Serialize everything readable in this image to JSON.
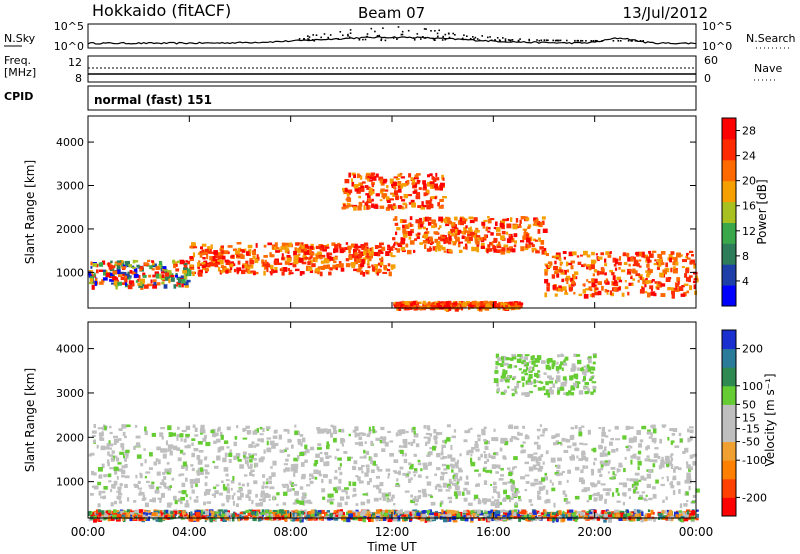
{
  "header": {
    "radar": "Hokkaido (fitACF)",
    "beam": "Beam 07",
    "date": "13/Jul/2012"
  },
  "noise_panel": {
    "left_label": "N.Sky",
    "right_label": "N.Search",
    "left_ticks": [
      "10^5",
      "10^0"
    ],
    "right_ticks": [
      "10^5",
      "10^0"
    ]
  },
  "freq_panel": {
    "left_label_1": "Freq.",
    "left_label_2": "[MHz]",
    "left_ticks": [
      "12",
      "8"
    ],
    "right_ticks": [
      "60",
      "0"
    ],
    "right_label": "Nave"
  },
  "cpid_panel": {
    "label": "CPID",
    "value": "normal (fast) 151"
  },
  "colors": {
    "power_scale": [
      "#0000ff",
      "#1e3fa8",
      "#2e7d5a",
      "#3aa84a",
      "#a8c020",
      "#f5a000",
      "#ff6a00",
      "#ff2a00",
      "#ff0000"
    ],
    "velocity_scale": [
      "#1a2fd0",
      "#2a7a9a",
      "#2e8a50",
      "#66cc33",
      "#bfbfbf",
      "#bfbfbf",
      "#f0a030",
      "#ff8000",
      "#ff4000",
      "#ff0000"
    ]
  },
  "chart_data": [
    {
      "type": "heatmap",
      "title": "",
      "quantity": "Power",
      "ylabel": "Slant Range [km]",
      "xlabel": "",
      "x_ticks": [
        "00:00",
        "04:00",
        "08:00",
        "12:00",
        "16:00",
        "20:00",
        "00:00"
      ],
      "y_ticks": [
        1000,
        2000,
        3000,
        4000
      ],
      "xlim_hours": [
        0,
        24
      ],
      "ylim_km": [
        180,
        4600
      ],
      "colorbar": {
        "label": "Power [dB]",
        "ticks": [
          4,
          8,
          12,
          16,
          20,
          24,
          28
        ],
        "range": [
          0,
          30
        ]
      },
      "bands": [
        {
          "t0": 0,
          "t1": 4,
          "r0": 700,
          "r1": 1300,
          "level": "medium"
        },
        {
          "t0": 4,
          "t1": 12,
          "r0": 1000,
          "r1": 1700,
          "level": "high"
        },
        {
          "t0": 12,
          "t1": 18,
          "r0": 1500,
          "r1": 2300,
          "level": "high"
        },
        {
          "t0": 18,
          "t1": 24,
          "r0": 500,
          "r1": 1500,
          "level": "high"
        },
        {
          "t0": 10,
          "t1": 14,
          "r0": 2500,
          "r1": 3300,
          "level": "high"
        },
        {
          "t0": 12,
          "t1": 17,
          "r0": 200,
          "r1": 350,
          "level": "high"
        }
      ]
    },
    {
      "type": "heatmap",
      "title": "",
      "quantity": "Velocity",
      "ylabel": "Slant Range [km]",
      "xlabel": "Time UT",
      "x_ticks": [
        "00:00",
        "04:00",
        "08:00",
        "12:00",
        "16:00",
        "20:00",
        "00:00"
      ],
      "y_ticks": [
        1000,
        2000,
        3000,
        4000
      ],
      "xlim_hours": [
        0,
        24
      ],
      "ylim_km": [
        180,
        4600
      ],
      "colorbar": {
        "label": "Velocity [m s⁻¹]",
        "ticks": [
          200,
          100,
          50,
          15,
          -15,
          -50,
          -100,
          -200
        ],
        "range": [
          -250,
          250
        ]
      },
      "bands": [
        {
          "t0": 0,
          "t1": 24,
          "r0": 500,
          "r1": 2300,
          "level": "ground-scatter"
        },
        {
          "t0": 16,
          "t1": 20,
          "r0": 3000,
          "r1": 3900,
          "level": "positive"
        },
        {
          "t0": 0,
          "t1": 24,
          "r0": 180,
          "r1": 380,
          "level": "mixed"
        }
      ]
    }
  ]
}
